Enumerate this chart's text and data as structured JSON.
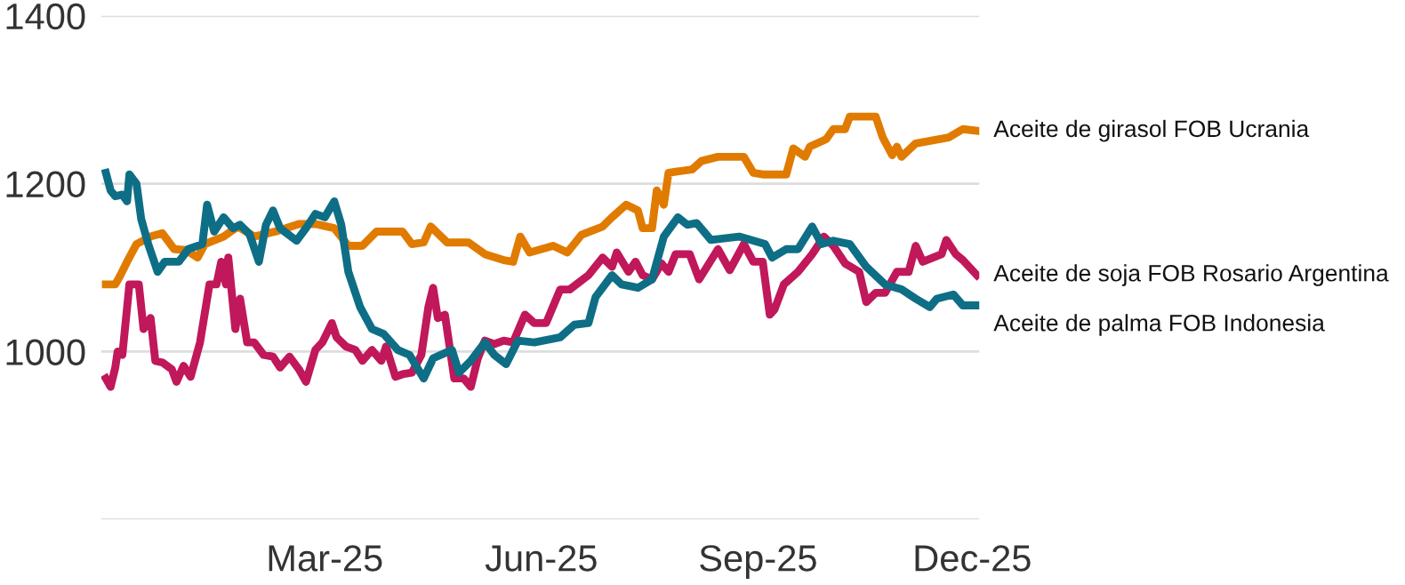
{
  "chart_data": {
    "type": "line",
    "ylim": [
      800,
      1400
    ],
    "yticks": [
      {
        "value": 800,
        "label": null
      },
      1000,
      1200,
      1400
    ],
    "xlim": [
      "2024-11-26",
      "2025-12-04"
    ],
    "xticks": [
      {
        "value": "2025-03-01",
        "label": "Mar-25"
      },
      {
        "value": "2025-06-01",
        "label": "Jun-25"
      },
      {
        "value": "2025-09-01",
        "label": "Sep-25"
      },
      {
        "value": "2025-12-01",
        "label": "Dec-25"
      }
    ],
    "grid": "y",
    "legend": false,
    "marker": "none",
    "line_style": "solid",
    "series": [
      {
        "name": "Aceite de girasol FOB Ucrania",
        "color": "#e07b00",
        "x": [
          "2024-11-28",
          "2024-12-02",
          "2024-12-04",
          "2024-12-07",
          "2024-12-11",
          "2024-12-17",
          "2024-12-22",
          "2024-12-27",
          "2025-01-01",
          "2025-01-06",
          "2025-01-09",
          "2025-01-17",
          "2025-01-23",
          "2025-01-30",
          "2025-02-08",
          "2025-02-18",
          "2025-02-25",
          "2025-03-05",
          "2025-03-11",
          "2025-03-17",
          "2025-03-23",
          "2025-04-03",
          "2025-04-07",
          "2025-04-12",
          "2025-04-15",
          "2025-04-22",
          "2025-05-01",
          "2025-05-08",
          "2025-05-16",
          "2025-05-20",
          "2025-05-23",
          "2025-05-27",
          "2025-06-06",
          "2025-06-12",
          "2025-06-18",
          "2025-06-27",
          "2025-07-01",
          "2025-07-07",
          "2025-07-12",
          "2025-07-14",
          "2025-07-18",
          "2025-07-20",
          "2025-07-23",
          "2025-07-25",
          "2025-08-04",
          "2025-08-08",
          "2025-08-15",
          "2025-08-26",
          "2025-08-30",
          "2025-09-03",
          "2025-09-13",
          "2025-09-16",
          "2025-09-21",
          "2025-09-23",
          "2025-09-30",
          "2025-10-03",
          "2025-10-08",
          "2025-10-10",
          "2025-10-21",
          "2025-10-24",
          "2025-10-28",
          "2025-10-30",
          "2025-11-01",
          "2025-11-07",
          "2025-11-21",
          "2025-11-27",
          "2025-12-03"
        ],
        "values": [
          1080,
          1080,
          1090,
          1107,
          1128,
          1137,
          1141,
          1122,
          1121,
          1112,
          1128,
          1137,
          1149,
          1137,
          1143,
          1152,
          1152,
          1147,
          1126,
          1126,
          1143,
          1143,
          1128,
          1130,
          1149,
          1130,
          1130,
          1116,
          1109,
          1107,
          1137,
          1118,
          1126,
          1118,
          1139,
          1149,
          1160,
          1175,
          1168,
          1147,
          1147,
          1192,
          1175,
          1213,
          1217,
          1227,
          1232,
          1232,
          1213,
          1211,
          1211,
          1242,
          1232,
          1244,
          1253,
          1265,
          1265,
          1280,
          1280,
          1255,
          1234,
          1244,
          1232,
          1248,
          1255,
          1265,
          1263
        ]
      },
      {
        "name": "Aceite de soja FOB Rosario Argentina",
        "color": "#c0185a",
        "x": [
          "2024-11-28",
          "2024-11-30",
          "2024-12-02",
          "2024-12-03",
          "2024-12-05",
          "2024-12-08",
          "2024-12-12",
          "2024-12-14",
          "2024-12-17",
          "2024-12-19",
          "2024-12-22",
          "2024-12-26",
          "2024-12-28",
          "2024-12-31",
          "2025-01-03",
          "2025-01-07",
          "2025-01-11",
          "2025-01-14",
          "2025-01-16",
          "2025-01-18",
          "2025-01-19",
          "2025-01-22",
          "2025-01-24",
          "2025-01-27",
          "2025-01-30",
          "2025-02-03",
          "2025-02-07",
          "2025-02-10",
          "2025-02-14",
          "2025-02-18",
          "2025-02-21",
          "2025-02-25",
          "2025-02-28",
          "2025-03-04",
          "2025-03-06",
          "2025-03-10",
          "2025-03-14",
          "2025-03-17",
          "2025-03-21",
          "2025-03-25",
          "2025-03-27",
          "2025-03-31",
          "2025-04-03",
          "2025-04-07",
          "2025-04-11",
          "2025-04-14",
          "2025-04-16",
          "2025-04-18",
          "2025-04-21",
          "2025-04-25",
          "2025-04-29",
          "2025-05-02",
          "2025-05-05",
          "2025-05-08",
          "2025-05-12",
          "2025-05-16",
          "2025-05-20",
          "2025-05-25",
          "2025-05-29",
          "2025-06-03",
          "2025-06-09",
          "2025-06-13",
          "2025-06-21",
          "2025-06-27",
          "2025-07-01",
          "2025-07-03",
          "2025-07-08",
          "2025-07-11",
          "2025-07-14",
          "2025-07-18",
          "2025-07-22",
          "2025-07-25",
          "2025-07-28",
          "2025-08-03",
          "2025-08-07",
          "2025-08-15",
          "2025-08-20",
          "2025-08-26",
          "2025-08-30",
          "2025-09-03",
          "2025-09-06",
          "2025-09-08",
          "2025-09-12",
          "2025-09-18",
          "2025-09-24",
          "2025-09-29",
          "2025-10-03",
          "2025-10-08",
          "2025-10-14",
          "2025-10-17",
          "2025-10-21",
          "2025-10-25",
          "2025-10-30",
          "2025-11-04",
          "2025-11-07",
          "2025-11-10",
          "2025-11-18",
          "2025-11-20",
          "2025-11-24",
          "2025-11-27",
          "2025-12-03"
        ],
        "values": [
          968,
          958,
          981,
          1000,
          996,
          1080,
          1080,
          1027,
          1040,
          989,
          987,
          979,
          964,
          983,
          970,
          1011,
          1080,
          1080,
          1107,
          1080,
          1112,
          1027,
          1063,
          1011,
          1011,
          996,
          994,
          981,
          994,
          979,
          964,
          1002,
          1011,
          1034,
          1017,
          1006,
          1002,
          989,
          1002,
          989,
          1006,
          970,
          973,
          975,
          996,
          1053,
          1076,
          1040,
          1044,
          968,
          968,
          958,
          992,
          1013,
          1009,
          1013,
          1011,
          1044,
          1034,
          1034,
          1074,
          1074,
          1091,
          1112,
          1101,
          1118,
          1095,
          1107,
          1091,
          1086,
          1105,
          1095,
          1116,
          1116,
          1086,
          1122,
          1097,
          1128,
          1107,
          1107,
          1044,
          1050,
          1080,
          1095,
          1116,
          1137,
          1126,
          1105,
          1095,
          1059,
          1070,
          1070,
          1095,
          1095,
          1126,
          1107,
          1116,
          1133,
          1116,
          1109,
          1091
        ]
      },
      {
        "name": "Aceite de palma FOB Indonesia",
        "color": "#0e6e85",
        "x": [
          "2024-11-28",
          "2024-11-30",
          "2024-12-02",
          "2024-12-05",
          "2024-12-07",
          "2024-12-08",
          "2024-12-11",
          "2024-12-13",
          "2024-12-16",
          "2024-12-20",
          "2024-12-23",
          "2024-12-29",
          "2025-01-02",
          "2025-01-08",
          "2025-01-10",
          "2025-01-13",
          "2025-01-17",
          "2025-01-21",
          "2025-01-24",
          "2025-01-28",
          "2025-02-01",
          "2025-02-04",
          "2025-02-07",
          "2025-02-10",
          "2025-02-17",
          "2025-02-21",
          "2025-02-25",
          "2025-03-01",
          "2025-03-05",
          "2025-03-08",
          "2025-03-11",
          "2025-03-16",
          "2025-03-21",
          "2025-03-26",
          "2025-04-01",
          "2025-04-06",
          "2025-04-12",
          "2025-04-16",
          "2025-04-24",
          "2025-04-27",
          "2025-05-02",
          "2025-05-08",
          "2025-05-12",
          "2025-05-17",
          "2025-05-22",
          "2025-05-29",
          "2025-06-09",
          "2025-06-15",
          "2025-06-21",
          "2025-06-24",
          "2025-07-01",
          "2025-07-05",
          "2025-07-12",
          "2025-07-18",
          "2025-07-23",
          "2025-07-29",
          "2025-08-02",
          "2025-08-06",
          "2025-08-12",
          "2025-08-24",
          "2025-09-04",
          "2025-09-07",
          "2025-09-13",
          "2025-09-18",
          "2025-09-24",
          "2025-09-28",
          "2025-10-03",
          "2025-10-10",
          "2025-10-17",
          "2025-10-25",
          "2025-11-01",
          "2025-11-07",
          "2025-11-13",
          "2025-11-16",
          "2025-11-23",
          "2025-11-27",
          "2025-12-03"
        ],
        "values": [
          1213,
          1192,
          1185,
          1187,
          1179,
          1211,
          1200,
          1158,
          1128,
          1095,
          1107,
          1107,
          1122,
          1128,
          1175,
          1143,
          1160,
          1147,
          1151,
          1140,
          1107,
          1151,
          1168,
          1147,
          1132,
          1147,
          1164,
          1160,
          1179,
          1151,
          1095,
          1053,
          1027,
          1021,
          1002,
          996,
          968,
          992,
          1002,
          975,
          989,
          1011,
          996,
          985,
          1013,
          1011,
          1017,
          1032,
          1034,
          1065,
          1091,
          1080,
          1076,
          1086,
          1137,
          1160,
          1151,
          1153,
          1133,
          1137,
          1128,
          1112,
          1122,
          1122,
          1149,
          1128,
          1132,
          1128,
          1101,
          1080,
          1074,
          1063,
          1053,
          1063,
          1068,
          1055,
          1055
        ]
      }
    ]
  }
}
